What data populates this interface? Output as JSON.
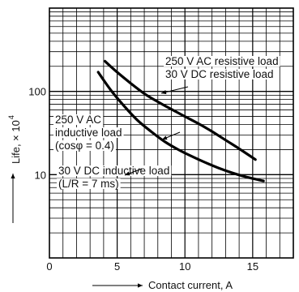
{
  "chart_data": {
    "type": "line",
    "title": "",
    "xlabel": "Contact current, A",
    "ylabel": "Life, × 10",
    "ylabel_exponent": "4",
    "x_scale": "linear",
    "y_scale": "log",
    "xlim": [
      0,
      18
    ],
    "ylim": [
      1,
      1000
    ],
    "x_ticks": [
      0,
      5,
      10,
      15
    ],
    "y_ticks": [
      10,
      100
    ],
    "grid": true,
    "legend": "none",
    "series": [
      {
        "label_lines": [
          "250 V AC resistive load",
          "30 V DC resistive load"
        ],
        "x": [
          4.1,
          5,
          6,
          7,
          8,
          9,
          10,
          11,
          12,
          13,
          14,
          15.2
        ],
        "y": [
          230,
          170,
          125,
          94,
          75,
          61,
          50,
          41,
          33,
          26,
          20.5,
          15.2
        ]
      },
      {
        "label_lines": [
          "250 V AC",
          "inductive load",
          "(cosφ = 0.4)",
          "30 V DC inductive load",
          "(L/R = 7 ms)"
        ],
        "x": [
          3.6,
          4.5,
          5.5,
          6.5,
          7.5,
          8.5,
          9.5,
          10.5,
          11.5,
          12.5,
          13.5,
          14.5,
          15.8
        ],
        "y": [
          170,
          105,
          67,
          45,
          33,
          25,
          20,
          16.6,
          14,
          12,
          10.5,
          9.4,
          8.4
        ]
      }
    ]
  }
}
